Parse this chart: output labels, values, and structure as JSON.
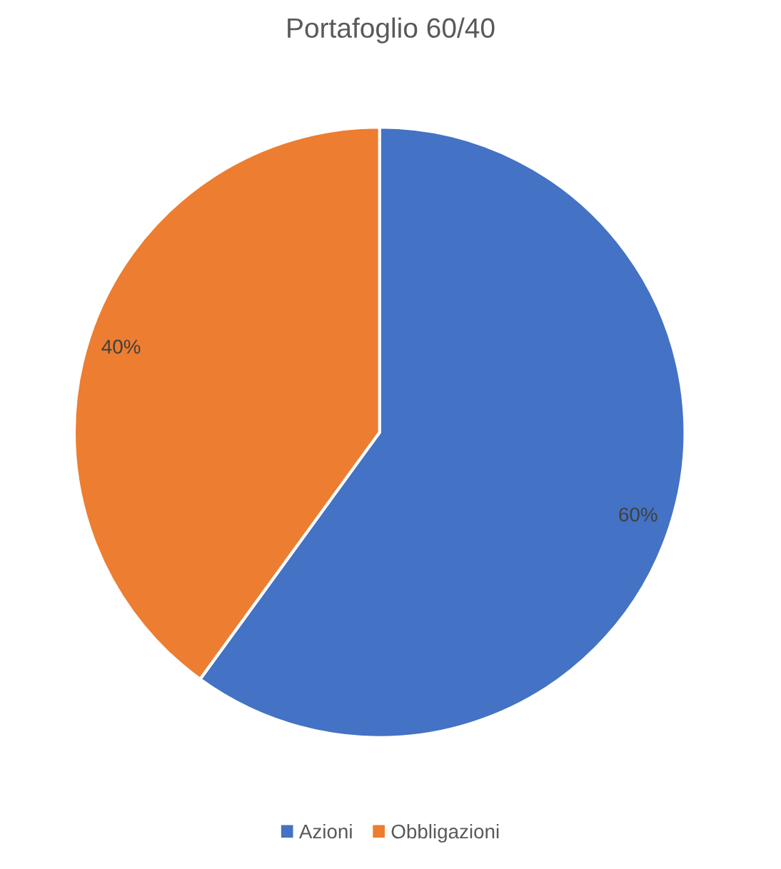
{
  "chart_data": {
    "type": "pie",
    "title": "Portafoglio 60/40",
    "categories": [
      "Azioni",
      "Obbligazioni"
    ],
    "values": [
      60,
      40
    ],
    "colors": [
      "#4472c4",
      "#ed7d31"
    ],
    "value_labels": [
      "60%",
      "40%"
    ],
    "legend": "bottom"
  }
}
